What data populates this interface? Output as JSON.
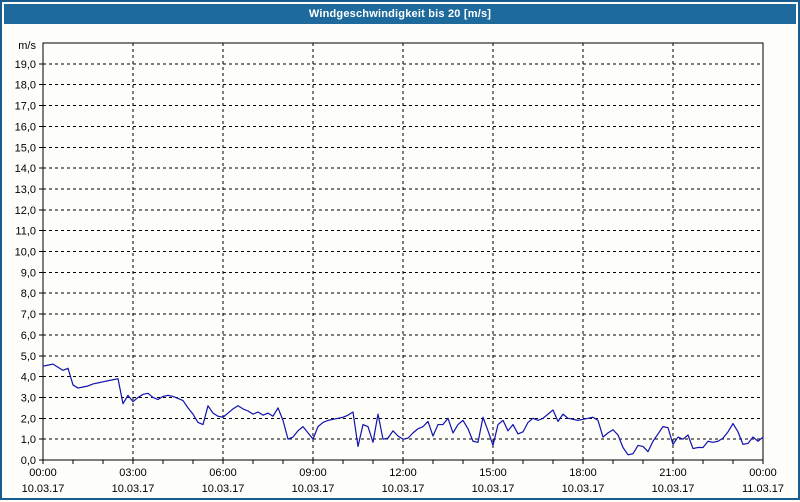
{
  "window": {
    "background": "#fdfdf9",
    "frame_color": "#1a5c8e",
    "titlebar_color": "#1f6a9c",
    "titlebar_text_color": "#ffffff"
  },
  "chart_data": {
    "type": "line",
    "title": "Windgeschwindigkeit bis 20 [m/s]",
    "unit_label": "m/s",
    "ylim": [
      0,
      20
    ],
    "y_tick_interval": 1.0,
    "y_tick_labels": [
      "0,0",
      "1,0",
      "2,0",
      "3,0",
      "4,0",
      "5,0",
      "6,0",
      "7,0",
      "8,0",
      "9,0",
      "10,0",
      "11,0",
      "12,0",
      "13,0",
      "14,0",
      "15,0",
      "16,0",
      "17,0",
      "18,0",
      "19,0"
    ],
    "x_major_ticks": [
      {
        "time": "00:00",
        "date": "10.03.17"
      },
      {
        "time": "03:00",
        "date": "10.03.17"
      },
      {
        "time": "06:00",
        "date": "10.03.17"
      },
      {
        "time": "09:00",
        "date": "10.03.17"
      },
      {
        "time": "12:00",
        "date": "10.03.17"
      },
      {
        "time": "15:00",
        "date": "10.03.17"
      },
      {
        "time": "18:00",
        "date": "10.03.17"
      },
      {
        "time": "21:00",
        "date": "10.03.17"
      },
      {
        "time": "00:00",
        "date": "11.03.17"
      }
    ],
    "x_minor_tick_hours": 1,
    "x_total_hours": 24,
    "grid": {
      "horizontal": "dashed",
      "vertical_at_major": "dashed"
    },
    "axis_color": "#000000",
    "grid_color": "#000000",
    "series": [
      {
        "name": "Windgeschwindigkeit",
        "color": "#1212b0",
        "sample_minutes": 10,
        "start_time": "00:00",
        "values": [
          4.5,
          4.55,
          4.6,
          4.45,
          4.3,
          4.4,
          3.6,
          3.45,
          3.5,
          3.55,
          3.65,
          3.7,
          3.75,
          3.8,
          3.85,
          3.9,
          2.7,
          3.1,
          2.8,
          3.0,
          3.15,
          3.2,
          3.0,
          2.9,
          3.05,
          3.1,
          3.05,
          2.95,
          2.85,
          2.5,
          2.2,
          1.8,
          1.7,
          2.6,
          2.25,
          2.1,
          2.05,
          2.25,
          2.45,
          2.6,
          2.45,
          2.35,
          2.2,
          2.3,
          2.15,
          2.25,
          2.1,
          2.5,
          1.9,
          1.0,
          1.1,
          1.4,
          1.6,
          1.3,
          1.0,
          1.6,
          1.8,
          1.9,
          1.95,
          2.0,
          2.05,
          2.15,
          2.3,
          0.65,
          1.7,
          1.6,
          0.85,
          2.2,
          1.0,
          1.05,
          1.4,
          1.15,
          1.0,
          1.05,
          1.3,
          1.5,
          1.6,
          1.85,
          1.15,
          1.7,
          1.7,
          2.0,
          1.3,
          1.7,
          1.9,
          1.5,
          0.9,
          0.85,
          2.05,
          1.4,
          0.7,
          1.7,
          1.9,
          1.4,
          1.7,
          1.25,
          1.35,
          1.8,
          2.0,
          1.9,
          2.0,
          2.2,
          2.4,
          1.85,
          2.2,
          2.0,
          1.95,
          1.9,
          1.95,
          2.0,
          2.05,
          1.9,
          1.1,
          1.3,
          1.45,
          1.2,
          0.6,
          0.25,
          0.3,
          0.7,
          0.65,
          0.4,
          0.9,
          1.25,
          1.6,
          1.55,
          0.75,
          1.1,
          1.0,
          1.2,
          0.55,
          0.6,
          0.6,
          0.9,
          0.85,
          0.9,
          1.05,
          1.35,
          1.75,
          1.35,
          0.75,
          0.8,
          1.1,
          0.9,
          1.1
        ]
      }
    ]
  }
}
